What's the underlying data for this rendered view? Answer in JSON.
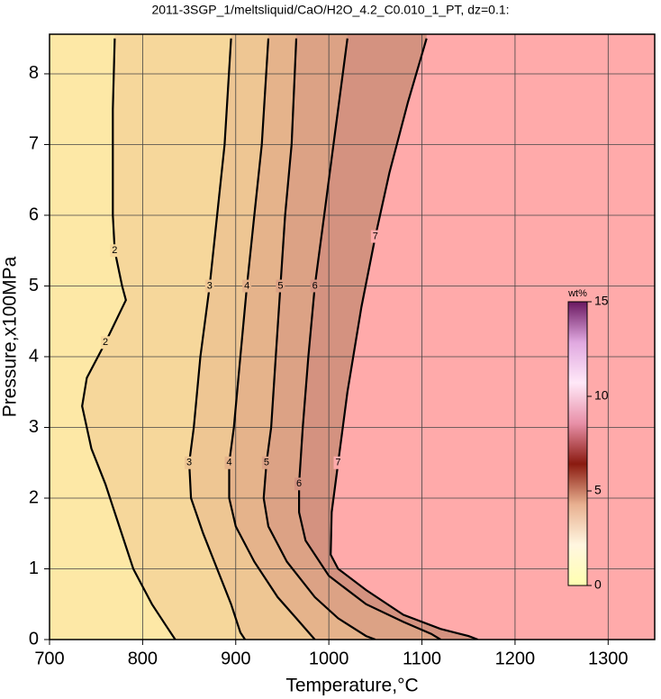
{
  "chart_data": {
    "type": "contour",
    "title": "2011-3SGP_1/meltsliquid/CaO/H2O_4.2_C0.010_1_PT, dz=0.1:",
    "x_label": "Temperature,°C",
    "y_label": "Pressure,x100MPa",
    "xlim": [
      700,
      1350
    ],
    "ylim": [
      0,
      8.56
    ],
    "xticks": [
      700,
      800,
      900,
      1000,
      1100,
      1200,
      1300
    ],
    "yticks": [
      0,
      1,
      2,
      3,
      4,
      5,
      6,
      7,
      8
    ],
    "grid": true,
    "background": "#fde8a6",
    "contours": [
      {
        "level": 2,
        "color": "#f6d79b",
        "x": [
          770,
          768,
          768,
          770,
          778,
          782,
          760,
          740,
          735,
          745,
          760,
          775,
          790,
          810,
          825,
          835
        ],
        "y": [
          8.5,
          7.5,
          6,
          5.5,
          5,
          4.8,
          4.2,
          3.7,
          3.3,
          2.7,
          2.2,
          1.6,
          1.0,
          0.5,
          0.2,
          0
        ]
      },
      {
        "level": 3,
        "color": "#eec693",
        "x": [
          895,
          888,
          880,
          872,
          862,
          855,
          850,
          852,
          865,
          880,
          895,
          905,
          910
        ],
        "y": [
          8.5,
          7,
          6,
          5,
          4,
          3,
          2.5,
          2,
          1.5,
          1,
          0.5,
          0.1,
          0
        ]
      },
      {
        "level": 4,
        "color": "#e5b38b",
        "x": [
          935,
          928,
          920,
          912,
          905,
          898,
          893,
          893,
          900,
          920,
          945,
          965,
          985
        ],
        "y": [
          8.5,
          7,
          6,
          5,
          4,
          3,
          2.5,
          2,
          1.6,
          1.1,
          0.6,
          0.3,
          0
        ]
      },
      {
        "level": 5,
        "color": "#dca285",
        "x": [
          965,
          960,
          953,
          948,
          943,
          938,
          933,
          930,
          935,
          955,
          985,
          1010,
          1040,
          1050
        ],
        "y": [
          8.5,
          7,
          6,
          5,
          4,
          3,
          2.5,
          2,
          1.6,
          1.1,
          0.6,
          0.3,
          0.05,
          0
        ]
      },
      {
        "level": 6,
        "color": "#d49280",
        "x": [
          1020,
          1005,
          995,
          985,
          978,
          972,
          968,
          968,
          975,
          1000,
          1040,
          1080,
          1110,
          1120
        ],
        "y": [
          8.5,
          7,
          6,
          5,
          4,
          3,
          2.2,
          1.8,
          1.4,
          0.9,
          0.5,
          0.25,
          0.08,
          0
        ]
      },
      {
        "level": 7,
        "color": "#ffaaaa",
        "x": [
          1105,
          1085,
          1065,
          1050,
          1035,
          1020,
          1010,
          1003,
          1002,
          1010,
          1040,
          1080,
          1120,
          1150,
          1160
        ],
        "y": [
          8.5,
          7.6,
          6.6,
          5.7,
          4.7,
          3.5,
          2.5,
          1.8,
          1.2,
          1.0,
          0.7,
          0.35,
          0.15,
          0.05,
          0
        ]
      }
    ],
    "colorbar": {
      "label": "wt%",
      "lim": [
        0,
        15
      ],
      "ticks": [
        0,
        5,
        10,
        15
      ],
      "colors": [
        "#ffffb0",
        "#fff6e0",
        "#e8b090",
        "#8a1a10",
        "#e890a8",
        "#ffe8f8",
        "#e0a8e0",
        "#6a1860"
      ]
    }
  }
}
